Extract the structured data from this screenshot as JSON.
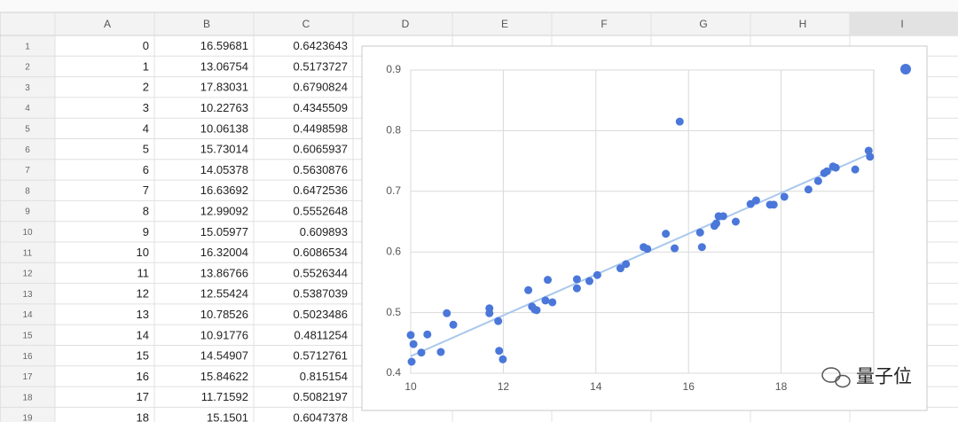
{
  "columns": [
    "A",
    "B",
    "C",
    "D",
    "E",
    "F",
    "G",
    "H",
    "I"
  ],
  "rows": [
    {
      "number": 1,
      "cells": [
        0,
        16.59681,
        0.6423643
      ]
    },
    {
      "number": 2,
      "cells": [
        1,
        13.06754,
        0.5173727
      ]
    },
    {
      "number": 3,
      "cells": [
        2,
        17.83031,
        0.6790824
      ]
    },
    {
      "number": 4,
      "cells": [
        3,
        10.22763,
        0.4345509
      ]
    },
    {
      "number": 5,
      "cells": [
        4,
        10.06138,
        0.4498598
      ]
    },
    {
      "number": 6,
      "cells": [
        5,
        15.73014,
        0.6065937
      ]
    },
    {
      "number": 7,
      "cells": [
        6,
        14.05378,
        0.5630876
      ]
    },
    {
      "number": 8,
      "cells": [
        7,
        16.63692,
        0.6472536
      ]
    },
    {
      "number": 9,
      "cells": [
        8,
        12.99092,
        0.5552648
      ]
    },
    {
      "number": 10,
      "cells": [
        9,
        15.05977,
        0.609893
      ]
    },
    {
      "number": 11,
      "cells": [
        10,
        16.32004,
        0.6086534
      ]
    },
    {
      "number": 12,
      "cells": [
        11,
        13.86766,
        0.5526344
      ]
    },
    {
      "number": 13,
      "cells": [
        12,
        12.55424,
        0.5387039
      ]
    },
    {
      "number": 14,
      "cells": [
        13,
        10.78526,
        0.5023486
      ]
    },
    {
      "number": 15,
      "cells": [
        14,
        10.91776,
        0.4811254
      ]
    },
    {
      "number": 16,
      "cells": [
        15,
        14.54907,
        0.5712761
      ]
    },
    {
      "number": 17,
      "cells": [
        16,
        15.84622,
        0.815154
      ]
    },
    {
      "number": 18,
      "cells": [
        17,
        11.71592,
        0.5082197
      ]
    },
    {
      "number": 19,
      "cells": [
        18,
        15.1501,
        0.6047378
      ]
    }
  ],
  "chart_data": {
    "type": "scatter",
    "color": "#4a77d9",
    "grid": true,
    "x": [
      10.0,
      10.06,
      10.02,
      10.23,
      10.36,
      10.65,
      10.78,
      10.92,
      11.7,
      11.7,
      11.89,
      11.91,
      11.99,
      12.54,
      12.62,
      12.68,
      12.72,
      12.91,
      12.96,
      13.06,
      13.59,
      13.59,
      13.86,
      14.03,
      14.53,
      14.65,
      15.03,
      15.11,
      15.51,
      15.7,
      15.81,
      16.25,
      16.29,
      16.56,
      16.6,
      16.65,
      16.75,
      17.02,
      17.34,
      17.46,
      17.76,
      17.84,
      18.07,
      18.59,
      18.8,
      18.93,
      18.99,
      19.12,
      19.18,
      19.6,
      19.89,
      19.92
    ],
    "y": [
      0.463,
      0.448,
      0.419,
      0.434,
      0.464,
      0.435,
      0.499,
      0.48,
      0.507,
      0.499,
      0.486,
      0.437,
      0.423,
      0.537,
      0.51,
      0.505,
      0.504,
      0.52,
      0.554,
      0.517,
      0.54,
      0.555,
      0.552,
      0.562,
      0.573,
      0.58,
      0.608,
      0.605,
      0.63,
      0.606,
      0.815,
      0.632,
      0.608,
      0.643,
      0.647,
      0.659,
      0.659,
      0.65,
      0.679,
      0.685,
      0.678,
      0.678,
      0.691,
      0.703,
      0.717,
      0.73,
      0.733,
      0.741,
      0.739,
      0.736,
      0.767,
      0.757
    ],
    "trendline": {
      "color": "#a9c8ec",
      "x": [
        10,
        19.92
      ],
      "y": [
        0.428,
        0.762
      ]
    },
    "xlim": [
      10,
      20
    ],
    "ylim": [
      0.4,
      0.9
    ],
    "xticks": [
      10,
      12,
      14,
      16,
      18
    ],
    "yticks": [
      0.4,
      0.5,
      0.6,
      0.7,
      0.8,
      0.9
    ]
  },
  "watermark": "量子位"
}
